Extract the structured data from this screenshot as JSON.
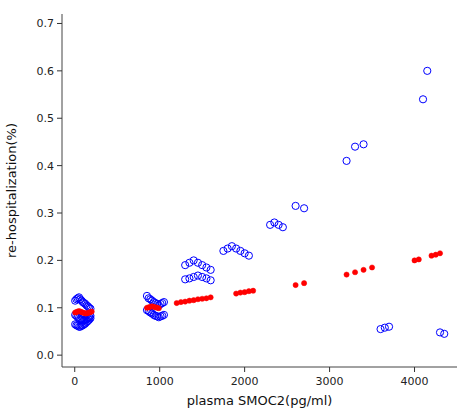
{
  "chart_data": {
    "type": "scatter",
    "xlabel": "plasma SMOC2(pg/ml)",
    "ylabel": "re-hospitalization(%)",
    "xlim": [
      -150,
      4500
    ],
    "ylim": [
      -0.025,
      0.72
    ],
    "xticks": [
      0,
      1000,
      2000,
      3000,
      4000
    ],
    "yticks": [
      {
        "value": 0.0,
        "label": "0.0"
      },
      0.1,
      0.2,
      0.3,
      0.4,
      0.5,
      0.6,
      0.7
    ],
    "grid": false,
    "series": [
      {
        "color": "#0000FF",
        "marker": "circle-open",
        "x": [
          5,
          20,
          35,
          50,
          65,
          80,
          95,
          110,
          125,
          140,
          155,
          170,
          185,
          5,
          20,
          35,
          50,
          65,
          80,
          95,
          110,
          125,
          140,
          155,
          170,
          185,
          5,
          20,
          35,
          50,
          65,
          80,
          95,
          110,
          125,
          140,
          155,
          170,
          185,
          850,
          870,
          890,
          910,
          930,
          950,
          970,
          990,
          1010,
          1030,
          1050,
          850,
          870,
          890,
          910,
          930,
          950,
          970,
          990,
          1010,
          1030,
          1050,
          1300,
          1350,
          1400,
          1450,
          1500,
          1550,
          1600,
          1300,
          1350,
          1400,
          1450,
          1500,
          1550,
          1600,
          1750,
          1800,
          1850,
          1900,
          1950,
          2000,
          2050,
          2300,
          2350,
          2400,
          2450,
          2600,
          2700,
          3200,
          3300,
          3400,
          3600,
          3650,
          3700,
          4100,
          4150,
          4300,
          4350
        ],
        "values": [
          0.115,
          0.118,
          0.12,
          0.122,
          0.118,
          0.115,
          0.112,
          0.11,
          0.108,
          0.105,
          0.103,
          0.1,
          0.098,
          0.085,
          0.083,
          0.08,
          0.078,
          0.076,
          0.075,
          0.073,
          0.073,
          0.075,
          0.076,
          0.078,
          0.08,
          0.083,
          0.065,
          0.063,
          0.062,
          0.06,
          0.06,
          0.062,
          0.063,
          0.065,
          0.067,
          0.07,
          0.072,
          0.075,
          0.078,
          0.125,
          0.12,
          0.118,
          0.115,
          0.112,
          0.11,
          0.108,
          0.105,
          0.108,
          0.11,
          0.112,
          0.095,
          0.093,
          0.09,
          0.088,
          0.085,
          0.083,
          0.082,
          0.08,
          0.082,
          0.083,
          0.085,
          0.19,
          0.195,
          0.2,
          0.195,
          0.19,
          0.185,
          0.18,
          0.16,
          0.162,
          0.165,
          0.168,
          0.165,
          0.162,
          0.158,
          0.22,
          0.225,
          0.23,
          0.225,
          0.22,
          0.215,
          0.21,
          0.275,
          0.28,
          0.275,
          0.27,
          0.315,
          0.31,
          0.41,
          0.44,
          0.445,
          0.055,
          0.058,
          0.06,
          0.54,
          0.6,
          0.048,
          0.045
        ]
      },
      {
        "color": "#FF0000",
        "marker": "circle",
        "x": [
          5,
          20,
          35,
          50,
          65,
          80,
          95,
          110,
          125,
          140,
          155,
          170,
          185,
          200,
          850,
          870,
          890,
          910,
          930,
          950,
          970,
          990,
          1200,
          1250,
          1300,
          1350,
          1400,
          1450,
          1500,
          1550,
          1600,
          1900,
          1950,
          2000,
          2050,
          2100,
          2600,
          2700,
          3200,
          3300,
          3400,
          3500,
          4000,
          4050,
          4200,
          4250,
          4300
        ],
        "values": [
          0.09,
          0.091,
          0.092,
          0.093,
          0.092,
          0.091,
          0.09,
          0.089,
          0.088,
          0.088,
          0.089,
          0.09,
          0.091,
          0.092,
          0.1,
          0.101,
          0.102,
          0.103,
          0.102,
          0.101,
          0.1,
          0.099,
          0.11,
          0.112,
          0.113,
          0.115,
          0.116,
          0.118,
          0.119,
          0.12,
          0.122,
          0.13,
          0.132,
          0.133,
          0.135,
          0.136,
          0.148,
          0.152,
          0.17,
          0.175,
          0.18,
          0.185,
          0.2,
          0.202,
          0.21,
          0.212,
          0.215
        ]
      }
    ]
  }
}
